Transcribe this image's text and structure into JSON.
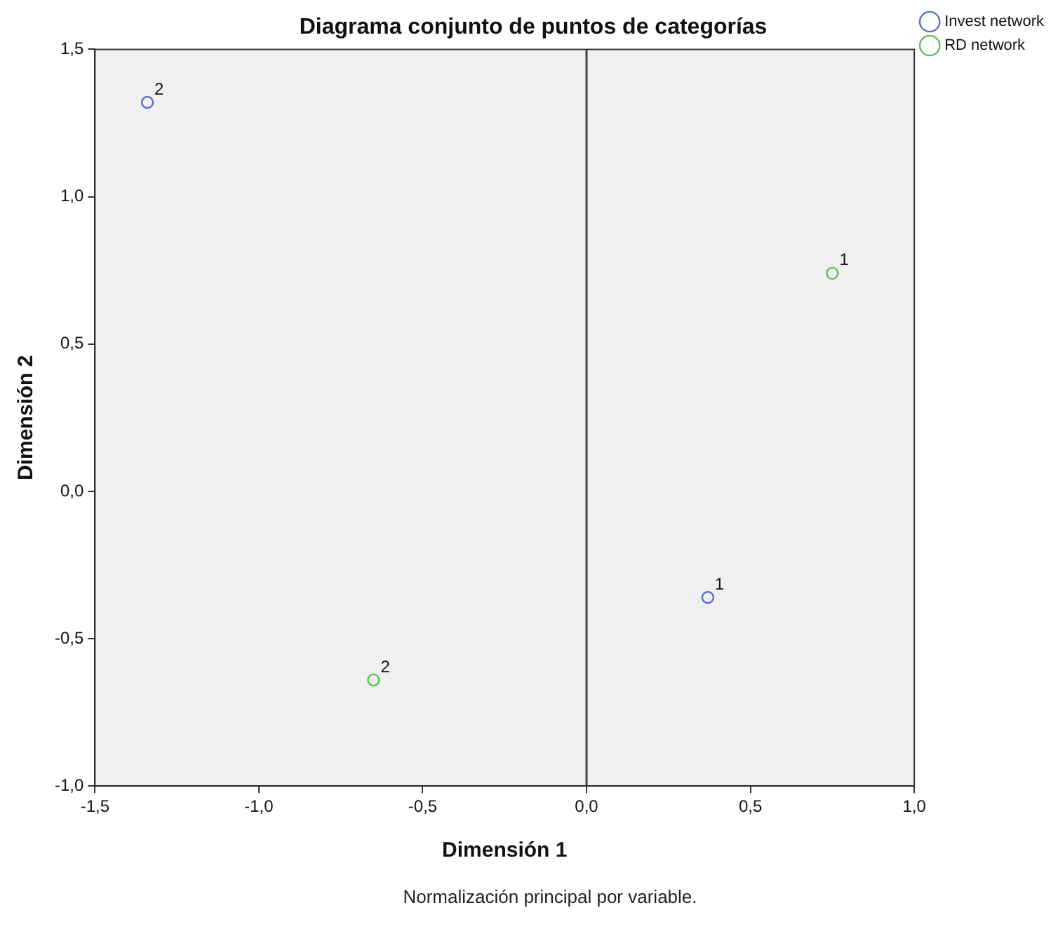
{
  "chart_data": {
    "type": "scatter",
    "title": "Diagrama conjunto de puntos de categorías",
    "xlabel": "Dimensión 1",
    "ylabel": "Dimensión 2",
    "series": [
      {
        "name": "Invest network",
        "color": "#5a6fc0",
        "x": [
          0.37,
          -1.34
        ],
        "values": [
          -0.36,
          1.32
        ]
      },
      {
        "name": "RD network",
        "color": "#5cbf5c",
        "x": [
          0.75,
          -0.65
        ],
        "values": [
          0.74,
          -0.64
        ]
      }
    ],
    "xlim": [
      -1.5,
      1.0
    ],
    "xticks": [
      {
        "value": -1.5,
        "label": "-1,5"
      },
      {
        "value": -1.0,
        "label": "-1,0"
      },
      {
        "value": -0.5,
        "label": "-0,5"
      },
      {
        "value": 0,
        "label": "0,0"
      },
      {
        "value": 0.5,
        "label": "0,5"
      },
      {
        "value": 1.0,
        "label": "1,0"
      }
    ],
    "ylim": [
      -1.0,
      1.5
    ],
    "yticks": [
      {
        "value": -1.0,
        "label": "-1,0"
      },
      {
        "value": -0.5,
        "label": "-0,5"
      },
      {
        "value": 0,
        "label": "0,0"
      },
      {
        "value": 0.5,
        "label": "0,5"
      },
      {
        "value": 1.0,
        "label": "1,0"
      },
      {
        "value": 1.5,
        "label": "1,5"
      }
    ],
    "ref_lines": [
      {
        "axis": "x",
        "value": 0,
        "color": "#404040"
      }
    ],
    "annotations": [
      {
        "text": "1",
        "x": 0.37,
        "y": -0.36
      },
      {
        "text": "2",
        "x": -1.34,
        "y": 1.32
      },
      {
        "text": "1",
        "x": 0.75,
        "y": 0.74
      },
      {
        "text": "2",
        "x": -0.65,
        "y": -0.64
      },
      "Normalización principal por variable."
    ],
    "grid": false,
    "legend": "top right",
    "marker": "circle"
  }
}
